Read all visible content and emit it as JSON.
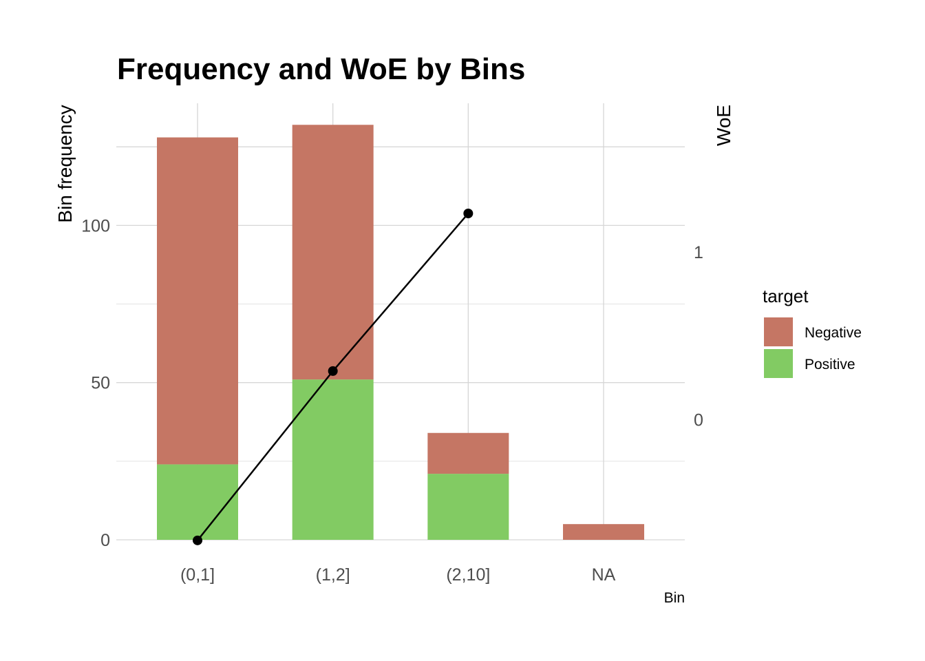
{
  "chart_data": {
    "type": "bar",
    "title": "Frequency and WoE by Bins",
    "xlabel": "Bin",
    "ylabel": "Bin frequency",
    "y2label": "WoE",
    "categories": [
      "(0,1]",
      "(1,2]",
      "(2,10]",
      "NA"
    ],
    "ylim": [
      0,
      140
    ],
    "yticks": [
      0,
      50,
      100
    ],
    "y2lim": [
      -0.72,
      1.86
    ],
    "y2ticks": [
      0,
      1
    ],
    "stacked": true,
    "grid": true,
    "legend_position": "right",
    "legend_title": "target",
    "series": [
      {
        "name": "Positive",
        "color": "#82cb63",
        "values": [
          24,
          51,
          21,
          0
        ]
      },
      {
        "name": "Negative",
        "color": "#c57664",
        "values": [
          104,
          81,
          13,
          5
        ]
      }
    ],
    "line_series": {
      "axis": "secondary",
      "color": "#000000",
      "points": [
        {
          "category": "(0,1]",
          "value": -0.72
        },
        {
          "category": "(1,2]",
          "value": 0.29
        },
        {
          "category": "(2,10]",
          "value": 1.23
        }
      ]
    },
    "legend_order": [
      "Negative",
      "Positive"
    ]
  }
}
